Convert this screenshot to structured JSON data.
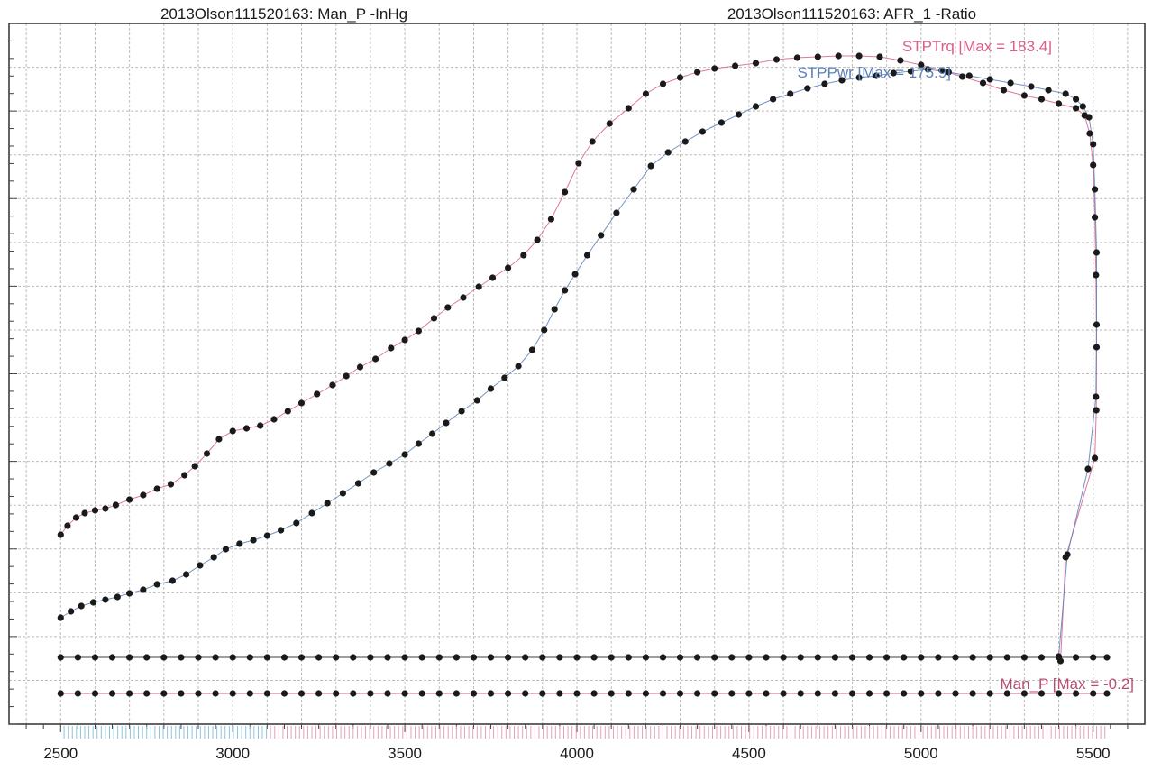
{
  "header": {
    "left_title": "2013Olson111520163: Man_P -InHg",
    "right_title": "2013Olson111520163: AFR_1 -Ratio"
  },
  "labels": {
    "trq": "STPTrq [Max = 183.4]",
    "pwr": "STPPwr [Max = 175.9]",
    "manp": "Man_P  [Max = -0.2]"
  },
  "colors": {
    "trq": "#d9608a",
    "pwr": "#5a80b8",
    "manp": "#b85070",
    "dot": "#1a1a1a",
    "grid": "#bdbdbd"
  },
  "chart_data": {
    "type": "scatter",
    "xlim": [
      2350,
      5650
    ],
    "xticks": [
      2500,
      3000,
      3500,
      4000,
      4500,
      5000,
      5500
    ],
    "tick_labels": [
      "2500",
      "3000",
      "3500",
      "4000",
      "4500",
      "5000",
      "5500"
    ],
    "grid": true,
    "series": [
      {
        "name": "STPTrq",
        "color": "#d9608a",
        "points": [
          [
            2500,
            593
          ],
          [
            2520,
            583
          ],
          [
            2545,
            574
          ],
          [
            2570,
            569
          ],
          [
            2600,
            566
          ],
          [
            2630,
            564
          ],
          [
            2660,
            560
          ],
          [
            2700,
            554
          ],
          [
            2740,
            549
          ],
          [
            2780,
            542
          ],
          [
            2820,
            537
          ],
          [
            2860,
            527
          ],
          [
            2890,
            517
          ],
          [
            2925,
            503
          ],
          [
            2960,
            487
          ],
          [
            3000,
            478
          ],
          [
            3040,
            475
          ],
          [
            3080,
            472
          ],
          [
            3120,
            465
          ],
          [
            3160,
            456
          ],
          [
            3200,
            447
          ],
          [
            3245,
            437
          ],
          [
            3290,
            427
          ],
          [
            3330,
            417
          ],
          [
            3370,
            407
          ],
          [
            3415,
            398
          ],
          [
            3460,
            386
          ],
          [
            3500,
            377
          ],
          [
            3540,
            367
          ],
          [
            3585,
            353
          ],
          [
            3625,
            341
          ],
          [
            3670,
            330
          ],
          [
            3715,
            318
          ],
          [
            3755,
            308
          ],
          [
            3800,
            297
          ],
          [
            3845,
            283
          ],
          [
            3885,
            266
          ],
          [
            3925,
            243
          ],
          [
            3965,
            213
          ],
          [
            4005,
            181
          ],
          [
            4045,
            157
          ],
          [
            4095,
            137
          ],
          [
            4150,
            120
          ],
          [
            4200,
            104
          ],
          [
            4250,
            93
          ],
          [
            4300,
            86
          ],
          [
            4350,
            80
          ],
          [
            4400,
            76
          ],
          [
            4460,
            73
          ],
          [
            4520,
            70
          ],
          [
            4580,
            66
          ],
          [
            4640,
            64
          ],
          [
            4700,
            63
          ],
          [
            4760,
            62
          ],
          [
            4820,
            62
          ],
          [
            4880,
            63
          ],
          [
            4940,
            67
          ],
          [
            5000,
            72
          ],
          [
            5060,
            78
          ],
          [
            5120,
            85
          ],
          [
            5180,
            92
          ],
          [
            5240,
            100
          ],
          [
            5300,
            106
          ],
          [
            5350,
            110
          ],
          [
            5400,
            115
          ],
          [
            5450,
            120
          ],
          [
            5475,
            128
          ],
          [
            5490,
            148
          ],
          [
            5500,
            183
          ],
          [
            5505,
            241
          ],
          [
            5508,
            305
          ],
          [
            5510,
            385
          ],
          [
            5509,
            455
          ],
          [
            5505,
            508
          ],
          [
            5420,
            618
          ],
          [
            5405,
            733
          ]
        ]
      },
      {
        "name": "STPPwr",
        "color": "#5a80b8",
        "points": [
          [
            2500,
            685
          ],
          [
            2530,
            678
          ],
          [
            2560,
            672
          ],
          [
            2595,
            668
          ],
          [
            2630,
            665
          ],
          [
            2665,
            662
          ],
          [
            2700,
            658
          ],
          [
            2740,
            654
          ],
          [
            2780,
            648
          ],
          [
            2825,
            644
          ],
          [
            2865,
            637
          ],
          [
            2905,
            627
          ],
          [
            2945,
            618
          ],
          [
            2980,
            609
          ],
          [
            3020,
            603
          ],
          [
            3060,
            599
          ],
          [
            3100,
            594
          ],
          [
            3140,
            588
          ],
          [
            3185,
            580
          ],
          [
            3230,
            569
          ],
          [
            3275,
            558
          ],
          [
            3320,
            547
          ],
          [
            3365,
            536
          ],
          [
            3410,
            524
          ],
          [
            3455,
            514
          ],
          [
            3500,
            504
          ],
          [
            3540,
            492
          ],
          [
            3580,
            481
          ],
          [
            3620,
            469
          ],
          [
            3665,
            456
          ],
          [
            3710,
            444
          ],
          [
            3750,
            431
          ],
          [
            3790,
            419
          ],
          [
            3830,
            406
          ],
          [
            3870,
            388
          ],
          [
            3905,
            366
          ],
          [
            3935,
            343
          ],
          [
            3965,
            322
          ],
          [
            3995,
            304
          ],
          [
            4030,
            283
          ],
          [
            4070,
            261
          ],
          [
            4115,
            236
          ],
          [
            4165,
            210
          ],
          [
            4215,
            184
          ],
          [
            4265,
            169
          ],
          [
            4315,
            157
          ],
          [
            4365,
            146
          ],
          [
            4420,
            136
          ],
          [
            4470,
            127
          ],
          [
            4520,
            118
          ],
          [
            4570,
            110
          ],
          [
            4620,
            104
          ],
          [
            4670,
            98
          ],
          [
            4720,
            93
          ],
          [
            4770,
            89
          ],
          [
            4820,
            86
          ],
          [
            4870,
            84
          ],
          [
            4920,
            81
          ],
          [
            4970,
            79
          ],
          [
            5020,
            77
          ],
          [
            5080,
            80
          ],
          [
            5140,
            84
          ],
          [
            5200,
            88
          ],
          [
            5260,
            92
          ],
          [
            5320,
            96
          ],
          [
            5370,
            100
          ],
          [
            5420,
            104
          ],
          [
            5450,
            110
          ],
          [
            5470,
            118
          ],
          [
            5488,
            130
          ],
          [
            5500,
            160
          ],
          [
            5505,
            210
          ],
          [
            5510,
            280
          ],
          [
            5510,
            360
          ],
          [
            5508,
            440
          ],
          [
            5485,
            520
          ],
          [
            5425,
            615
          ],
          [
            5400,
            728
          ]
        ]
      },
      {
        "name": "Man_P",
        "color": "#b85070",
        "points": [
          [
            2500,
            769
          ],
          [
            2550,
            769
          ],
          [
            2600,
            769
          ],
          [
            2650,
            769
          ],
          [
            2700,
            769
          ],
          [
            2750,
            769
          ],
          [
            2800,
            769
          ],
          [
            2850,
            769
          ],
          [
            2900,
            769
          ],
          [
            2950,
            769
          ],
          [
            3000,
            769
          ],
          [
            3050,
            769
          ],
          [
            3100,
            769
          ],
          [
            3150,
            769
          ],
          [
            3200,
            769
          ],
          [
            3250,
            769
          ],
          [
            3300,
            769
          ],
          [
            3350,
            769
          ],
          [
            3400,
            769
          ],
          [
            3450,
            769
          ],
          [
            3500,
            769
          ],
          [
            3550,
            769
          ],
          [
            3600,
            769
          ],
          [
            3650,
            769
          ],
          [
            3700,
            769
          ],
          [
            3750,
            769
          ],
          [
            3800,
            769
          ],
          [
            3850,
            769
          ],
          [
            3900,
            769
          ],
          [
            3950,
            769
          ],
          [
            4000,
            769
          ],
          [
            4050,
            769
          ],
          [
            4100,
            769
          ],
          [
            4150,
            769
          ],
          [
            4200,
            769
          ],
          [
            4250,
            769
          ],
          [
            4300,
            769
          ],
          [
            4350,
            769
          ],
          [
            4400,
            769
          ],
          [
            4450,
            769
          ],
          [
            4500,
            769
          ],
          [
            4550,
            769
          ],
          [
            4600,
            769
          ],
          [
            4650,
            769
          ],
          [
            4700,
            769
          ],
          [
            4750,
            769
          ],
          [
            4800,
            769
          ],
          [
            4850,
            769
          ],
          [
            4900,
            769
          ],
          [
            4950,
            769
          ],
          [
            5000,
            769
          ],
          [
            5050,
            769
          ],
          [
            5100,
            769
          ],
          [
            5150,
            769
          ],
          [
            5200,
            769
          ],
          [
            5250,
            769
          ],
          [
            5300,
            769
          ],
          [
            5350,
            769
          ],
          [
            5400,
            769
          ],
          [
            5450,
            769
          ],
          [
            5500,
            769
          ],
          [
            5540,
            769
          ]
        ]
      },
      {
        "name": "AFR_1",
        "color": "#1a1a1a",
        "points": [
          [
            2500,
            729
          ],
          [
            2550,
            729
          ],
          [
            2600,
            729
          ],
          [
            2650,
            729
          ],
          [
            2700,
            729
          ],
          [
            2750,
            729
          ],
          [
            2800,
            729
          ],
          [
            2850,
            729
          ],
          [
            2900,
            729
          ],
          [
            2950,
            729
          ],
          [
            3000,
            729
          ],
          [
            3050,
            729
          ],
          [
            3100,
            729
          ],
          [
            3150,
            729
          ],
          [
            3200,
            729
          ],
          [
            3250,
            729
          ],
          [
            3300,
            729
          ],
          [
            3350,
            729
          ],
          [
            3400,
            729
          ],
          [
            3450,
            729
          ],
          [
            3500,
            729
          ],
          [
            3550,
            729
          ],
          [
            3600,
            729
          ],
          [
            3650,
            729
          ],
          [
            3700,
            729
          ],
          [
            3750,
            729
          ],
          [
            3800,
            729
          ],
          [
            3850,
            729
          ],
          [
            3900,
            729
          ],
          [
            3950,
            729
          ],
          [
            4000,
            729
          ],
          [
            4050,
            729
          ],
          [
            4100,
            729
          ],
          [
            4150,
            729
          ],
          [
            4200,
            729
          ],
          [
            4250,
            729
          ],
          [
            4300,
            729
          ],
          [
            4350,
            729
          ],
          [
            4400,
            729
          ],
          [
            4450,
            729
          ],
          [
            4500,
            729
          ],
          [
            4550,
            729
          ],
          [
            4600,
            729
          ],
          [
            4650,
            729
          ],
          [
            4700,
            729
          ],
          [
            4750,
            729
          ],
          [
            4800,
            729
          ],
          [
            4850,
            729
          ],
          [
            4900,
            729
          ],
          [
            4950,
            729
          ],
          [
            5000,
            729
          ],
          [
            5050,
            729
          ],
          [
            5100,
            729
          ],
          [
            5150,
            729
          ],
          [
            5200,
            729
          ],
          [
            5250,
            729
          ],
          [
            5300,
            729
          ],
          [
            5350,
            729
          ],
          [
            5400,
            729
          ],
          [
            5450,
            729
          ],
          [
            5500,
            729
          ],
          [
            5540,
            729
          ]
        ]
      }
    ]
  }
}
